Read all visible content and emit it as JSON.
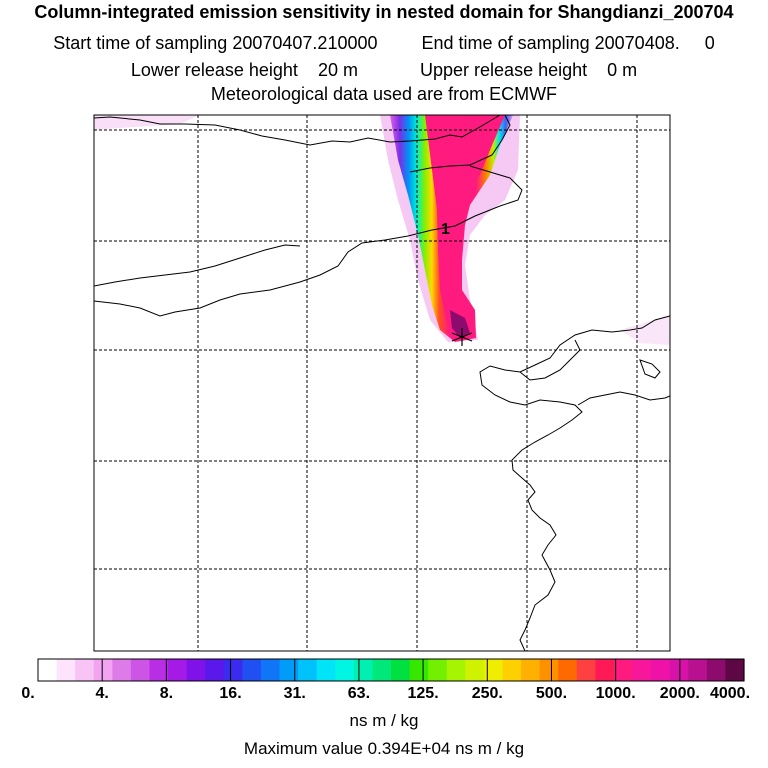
{
  "title": {
    "main": "Column-integrated emission sensitivity in nested domain for Shangdianzi_200704",
    "start_label": "Start time of sampling",
    "start_value": "20070407.210000",
    "end_label": "End time of sampling",
    "end_value": "20070408.     0",
    "lower_label": "Lower release height",
    "lower_value": "20 m",
    "upper_label": "Upper release height",
    "upper_value": "0 m",
    "met_data": "Meteorological data used are from ECMWF"
  },
  "map": {
    "release_marker": "1",
    "release_site_symbol": "star"
  },
  "colorbar": {
    "tick_labels": [
      "0.",
      "4.",
      "8.",
      "16.",
      "31.",
      "63.",
      "125.",
      "250.",
      "500.",
      "1000.",
      "2000.",
      "4000."
    ],
    "colors": [
      "#ffffff",
      "#fde4fc",
      "#f8c4f6",
      "#f2a4f0",
      "#dd7be9",
      "#cc55e6",
      "#b82ee4",
      "#a51ae6",
      "#7f12e8",
      "#5a18ea",
      "#3a2bee",
      "#2050f2",
      "#1075f6",
      "#009cf8",
      "#00c2fa",
      "#00e4f8",
      "#00f5e2",
      "#00f0b2",
      "#00e87a",
      "#00e040",
      "#36e800",
      "#72f000",
      "#a6f400",
      "#cff200",
      "#f0ee00",
      "#ffd000",
      "#ffb000",
      "#ff9000",
      "#ff6a00",
      "#ff4040",
      "#ff1a55",
      "#ff1a80",
      "#f8169a",
      "#ee12a8",
      "#d812a8",
      "#b8108f",
      "#8e0b6e",
      "#5e0745"
    ],
    "units": "ns m / kg",
    "max_value_text": "Maximum value  0.394E+04 ns m / kg"
  }
}
